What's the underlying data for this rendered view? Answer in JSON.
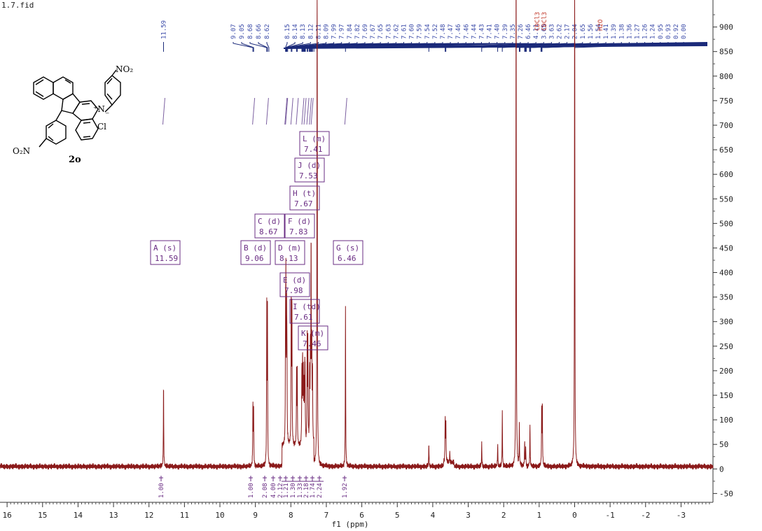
{
  "file_title": "1.7.fid",
  "structure": {
    "no2_top": "NO₂",
    "no2_bottom": "O₂N",
    "n_plus": "⁺N",
    "cl": "Cl",
    "minus": "⁻",
    "compound_id": "2o"
  },
  "chart_data": {
    "type": "line",
    "xlabel": "f1 (ppm)",
    "xlim": [
      16.2,
      -3.9
    ],
    "ylim": [
      -68,
      955
    ],
    "x_ticks": [
      "16",
      "15",
      "14",
      "13",
      "12",
      "11",
      "10",
      "9",
      "8",
      "7",
      "6",
      "5",
      "4",
      "3",
      "2",
      "1",
      "0",
      "-1",
      "-2",
      "-3"
    ],
    "x_tick_values": [
      16,
      15,
      14,
      13,
      12,
      11,
      10,
      9,
      8,
      7,
      6,
      5,
      4,
      3,
      2,
      1,
      0,
      -1,
      -2,
      -3
    ],
    "y_ticks": [
      "-50",
      "0",
      "50",
      "100",
      "150",
      "200",
      "250",
      "300",
      "350",
      "400",
      "450",
      "500",
      "550",
      "600",
      "650",
      "700",
      "750",
      "800",
      "850",
      "900"
    ],
    "y_tick_values": [
      -50,
      0,
      50,
      100,
      150,
      200,
      250,
      300,
      350,
      400,
      450,
      500,
      550,
      600,
      650,
      700,
      750,
      800,
      850,
      900
    ],
    "peaks": [
      {
        "ppm": 11.59,
        "height": 170
      },
      {
        "ppm": 9.07,
        "height": 128
      },
      {
        "ppm": 9.05,
        "height": 125
      },
      {
        "ppm": 8.68,
        "height": 318
      },
      {
        "ppm": 8.66,
        "height": 312
      },
      {
        "ppm": 8.15,
        "height": 215
      },
      {
        "ppm": 8.14,
        "height": 302
      },
      {
        "ppm": 8.12,
        "height": 240
      },
      {
        "ppm": 8.11,
        "height": 160
      },
      {
        "ppm": 7.99,
        "height": 310
      },
      {
        "ppm": 7.97,
        "height": 300
      },
      {
        "ppm": 7.84,
        "height": 145
      },
      {
        "ppm": 7.82,
        "height": 150
      },
      {
        "ppm": 7.69,
        "height": 155
      },
      {
        "ppm": 7.67,
        "height": 170
      },
      {
        "ppm": 7.65,
        "height": 150
      },
      {
        "ppm": 7.63,
        "height": 120
      },
      {
        "ppm": 7.61,
        "height": 130
      },
      {
        "ppm": 7.6,
        "height": 125
      },
      {
        "ppm": 7.54,
        "height": 210
      },
      {
        "ppm": 7.52,
        "height": 205
      },
      {
        "ppm": 7.47,
        "height": 150
      },
      {
        "ppm": 7.45,
        "height": 190
      },
      {
        "ppm": 7.43,
        "height": 415
      },
      {
        "ppm": 7.41,
        "height": 200
      },
      {
        "ppm": 7.39,
        "height": 150
      },
      {
        "ppm": 7.26,
        "height": 1200
      },
      {
        "ppm": 6.46,
        "height": 325
      },
      {
        "ppm": 4.11,
        "height": 48
      },
      {
        "ppm": 3.65,
        "height": 92
      },
      {
        "ppm": 3.63,
        "height": 88
      },
      {
        "ppm": 3.52,
        "height": 22
      },
      {
        "ppm": 2.62,
        "height": 48
      },
      {
        "ppm": 2.17,
        "height": 48
      },
      {
        "ppm": 2.04,
        "height": 112
      },
      {
        "ppm": 1.65,
        "height": 1200
      },
      {
        "ppm": 1.56,
        "height": 80
      },
      {
        "ppm": 1.41,
        "height": 50
      },
      {
        "ppm": 1.38,
        "height": 40
      },
      {
        "ppm": 1.26,
        "height": 88
      },
      {
        "ppm": 0.93,
        "height": 120
      },
      {
        "ppm": 0.91,
        "height": 125
      },
      {
        "ppm": 0.0,
        "height": 1200
      }
    ],
    "peak_labels": [
      "11.59",
      "9.07",
      "9.05",
      "8.68",
      "8.66",
      "8.62",
      "8.15",
      "8.14",
      "8.13",
      "8.12",
      "8.11",
      "8.09",
      "7.99",
      "7.97",
      "7.84",
      "7.82",
      "7.69",
      "7.67",
      "7.65",
      "7.63",
      "7.62",
      "7.61",
      "7.60",
      "7.59",
      "7.54",
      "7.52",
      "7.48",
      "7.47",
      "7.46",
      "7.46",
      "7.44",
      "7.43",
      "7.41",
      "7.40",
      "7.39",
      "7.35",
      "7.26",
      "6.46",
      "4.11",
      "3.65",
      "3.63",
      "2.62",
      "2.17",
      "2.04",
      "1.65",
      "1.56",
      "1.54",
      "1.41",
      "1.39",
      "1.38",
      "1.36",
      "1.27",
      "1.26",
      "1.24",
      "0.95",
      "0.93",
      "0.92",
      "0.00"
    ],
    "solvent_labels": [
      "CDCl3",
      "CDCl3",
      "H2O"
    ],
    "multiplets": [
      {
        "letter": "A",
        "mult": "s",
        "shift": "11.59"
      },
      {
        "letter": "B",
        "mult": "d",
        "shift": "9.06"
      },
      {
        "letter": "C",
        "mult": "d",
        "shift": "8.67"
      },
      {
        "letter": "D",
        "mult": "m",
        "shift": "8.13"
      },
      {
        "letter": "E",
        "mult": "d",
        "shift": "7.98"
      },
      {
        "letter": "F",
        "mult": "d",
        "shift": "7.83"
      },
      {
        "letter": "G",
        "mult": "s",
        "shift": "6.46"
      },
      {
        "letter": "H",
        "mult": "t",
        "shift": "7.67"
      },
      {
        "letter": "I",
        "mult": "td",
        "shift": "7.61"
      },
      {
        "letter": "J",
        "mult": "d",
        "shift": "7.53"
      },
      {
        "letter": "K",
        "mult": "m",
        "shift": "7.46"
      },
      {
        "letter": "L",
        "mult": "m",
        "shift": "7.41"
      }
    ],
    "integrals": [
      {
        "ppm": 11.59,
        "value": "1.00"
      },
      {
        "ppm": 9.06,
        "value": "1.00"
      },
      {
        "ppm": 8.67,
        "value": "2.08"
      },
      {
        "ppm": 8.45,
        "value": "4.00"
      },
      {
        "ppm": 8.13,
        "value": "2.12"
      },
      {
        "ppm": 7.98,
        "value": "1.21"
      },
      {
        "ppm": 7.83,
        "value": "1.30"
      },
      {
        "ppm": 7.67,
        "value": "1.33"
      },
      {
        "ppm": 7.61,
        "value": "2.18"
      },
      {
        "ppm": 7.53,
        "value": "1.74"
      },
      {
        "ppm": 7.45,
        "value": "2.24"
      },
      {
        "ppm": 6.46,
        "value": "1.92"
      }
    ]
  }
}
